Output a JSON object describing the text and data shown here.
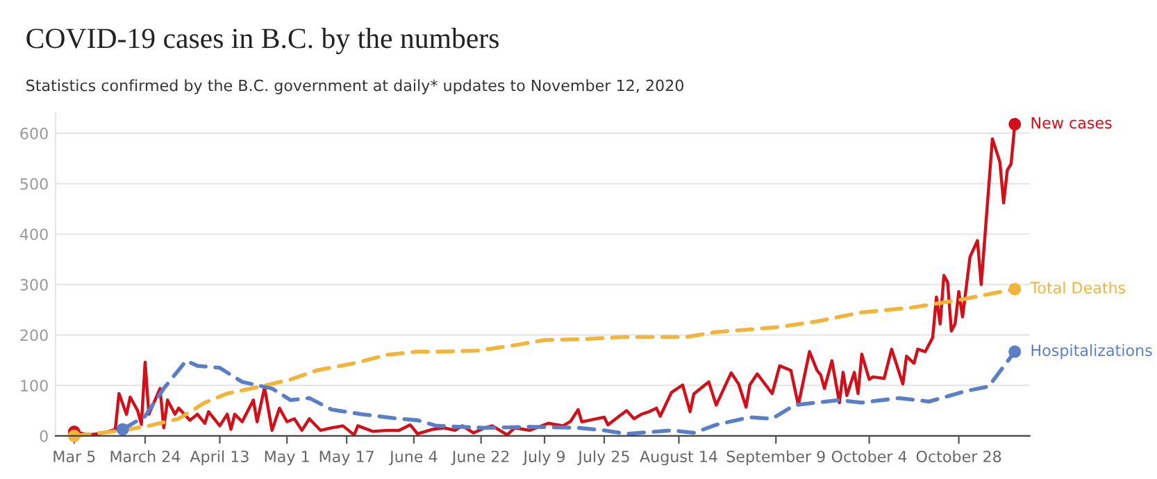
{
  "chart_data": {
    "type": "line",
    "title": "COVID-19 cases in B.C. by the numbers",
    "subtitle": "Statistics confirmed by the B.C. government at daily* updates to November 12, 2020",
    "series": [
      {
        "name": "New cases",
        "color": "#d0101b",
        "line_style": "solid",
        "x": [
          "2020-03-05",
          "2020-03-09",
          "2020-03-13",
          "2020-03-16",
          "2020-03-17",
          "2020-03-19",
          "2020-03-20",
          "2020-03-22",
          "2020-03-23",
          "2020-03-24",
          "2020-03-25",
          "2020-03-28",
          "2020-03-29",
          "2020-03-30",
          "2020-04-01",
          "2020-04-02",
          "2020-04-05",
          "2020-04-07",
          "2020-04-09",
          "2020-04-10",
          "2020-04-13",
          "2020-04-15",
          "2020-04-16",
          "2020-04-17",
          "2020-04-19",
          "2020-04-22",
          "2020-04-23",
          "2020-04-25",
          "2020-04-27",
          "2020-04-29",
          "2020-05-01",
          "2020-05-03",
          "2020-05-05",
          "2020-05-07",
          "2020-05-10",
          "2020-05-13",
          "2020-05-16",
          "2020-05-19",
          "2020-05-20",
          "2020-05-24",
          "2020-05-28",
          "2020-05-31",
          "2020-06-03",
          "2020-06-05",
          "2020-06-09",
          "2020-06-12",
          "2020-06-15",
          "2020-06-17",
          "2020-06-20",
          "2020-06-23",
          "2020-06-25",
          "2020-06-29",
          "2020-07-01",
          "2020-07-05",
          "2020-07-10",
          "2020-07-14",
          "2020-07-16",
          "2020-07-18",
          "2020-07-19",
          "2020-07-23",
          "2020-07-25",
          "2020-07-26",
          "2020-07-29",
          "2020-07-31",
          "2020-08-02",
          "2020-08-04",
          "2020-08-06",
          "2020-08-08",
          "2020-08-09",
          "2020-08-12",
          "2020-08-15",
          "2020-08-17",
          "2020-08-18",
          "2020-08-22",
          "2020-08-24",
          "2020-08-28",
          "2020-08-30",
          "2020-09-01",
          "2020-09-02",
          "2020-09-04",
          "2020-09-08",
          "2020-09-10",
          "2020-09-13",
          "2020-09-15",
          "2020-09-18",
          "2020-09-20",
          "2020-09-21",
          "2020-09-22",
          "2020-09-24",
          "2020-09-26",
          "2020-09-27",
          "2020-09-28",
          "2020-09-30",
          "2020-10-01",
          "2020-10-02",
          "2020-10-04",
          "2020-10-05",
          "2020-10-08",
          "2020-10-10",
          "2020-10-13",
          "2020-10-14",
          "2020-10-16",
          "2020-10-17",
          "2020-10-19",
          "2020-10-21",
          "2020-10-22",
          "2020-10-23",
          "2020-10-24",
          "2020-10-25",
          "2020-10-26",
          "2020-10-27",
          "2020-10-28",
          "2020-10-29",
          "2020-10-31",
          "2020-11-02",
          "2020-11-03",
          "2020-11-06",
          "2020-11-08",
          "2020-11-09",
          "2020-11-10",
          "2020-11-11",
          "2020-11-12"
        ],
        "values": [
          8,
          2,
          6,
          13,
          84,
          43,
          77,
          50,
          23,
          146,
          43,
          94,
          16,
          71,
          43,
          55,
          31,
          43,
          25,
          48,
          20,
          43,
          13,
          43,
          28,
          71,
          28,
          96,
          11,
          55,
          28,
          34,
          11,
          34,
          11,
          16,
          20,
          2,
          20,
          9,
          11,
          11,
          22,
          4,
          13,
          16,
          11,
          20,
          6,
          16,
          20,
          2,
          16,
          11,
          25,
          20,
          29,
          52,
          28,
          34,
          37,
          22,
          39,
          50,
          34,
          43,
          48,
          55,
          39,
          86,
          101,
          48,
          83,
          107,
          61,
          125,
          103,
          57,
          101,
          123,
          84,
          139,
          130,
          61,
          167,
          130,
          121,
          94,
          149,
          66,
          126,
          80,
          126,
          84,
          162,
          112,
          117,
          114,
          172,
          103,
          158,
          144,
          172,
          167,
          195,
          275,
          222,
          318,
          305,
          208,
          222,
          286,
          236,
          355,
          387,
          300,
          589,
          543,
          462,
          527,
          539,
          618
        ]
      },
      {
        "name": "Total Deaths",
        "color": "#f2b53a",
        "line_style": "dashed",
        "x": [
          "2020-03-05",
          "2020-03-18",
          "2020-03-25",
          "2020-04-02",
          "2020-04-09",
          "2020-04-15",
          "2020-04-24",
          "2020-05-02",
          "2020-05-09",
          "2020-05-19",
          "2020-05-28",
          "2020-06-05",
          "2020-06-10",
          "2020-06-21",
          "2020-07-02",
          "2020-07-09",
          "2020-07-20",
          "2020-07-30",
          "2020-08-16",
          "2020-08-24",
          "2020-09-02",
          "2020-09-10",
          "2020-09-20",
          "2020-10-02",
          "2020-10-15",
          "2020-10-27",
          "2020-11-12"
        ],
        "values": [
          0,
          11,
          20,
          34,
          66,
          84,
          98,
          112,
          130,
          144,
          161,
          167,
          167,
          169,
          181,
          190,
          192,
          196,
          196,
          206,
          211,
          216,
          227,
          245,
          254,
          268,
          291
        ]
      },
      {
        "name": "Hospitalizations",
        "color": "#5b7fc7",
        "line_style": "dashed",
        "x": [
          "2020-03-18",
          "2020-03-24",
          "2020-03-29",
          "2020-04-04",
          "2020-04-07",
          "2020-04-13",
          "2020-04-19",
          "2020-04-27",
          "2020-05-02",
          "2020-05-07",
          "2020-05-13",
          "2020-05-21",
          "2020-05-31",
          "2020-06-05",
          "2020-06-10",
          "2020-06-23",
          "2020-07-05",
          "2020-07-18",
          "2020-07-25",
          "2020-07-31",
          "2020-08-12",
          "2020-08-18",
          "2020-08-24",
          "2020-09-02",
          "2020-09-08",
          "2020-09-14",
          "2020-09-26",
          "2020-10-02",
          "2020-10-12",
          "2020-10-20",
          "2020-10-30",
          "2020-11-05",
          "2020-11-12"
        ],
        "values": [
          13,
          39,
          94,
          149,
          139,
          135,
          107,
          94,
          71,
          75,
          52,
          43,
          34,
          31,
          20,
          16,
          18,
          16,
          11,
          4,
          11,
          6,
          22,
          37,
          34,
          61,
          71,
          66,
          75,
          68,
          89,
          98,
          167
        ]
      }
    ],
    "xlim": [
      "2020-02-29",
      "2020-11-16"
    ],
    "xticks": [
      {
        "value": "2020-03-05",
        "label": "Mar 5"
      },
      {
        "value": "2020-03-24",
        "label": "March 24"
      },
      {
        "value": "2020-04-13",
        "label": "April 13"
      },
      {
        "value": "2020-05-01",
        "label": "May 1"
      },
      {
        "value": "2020-05-17",
        "label": "May 17"
      },
      {
        "value": "2020-06-04",
        "label": "June 4"
      },
      {
        "value": "2020-06-22",
        "label": "June 22"
      },
      {
        "value": "2020-07-09",
        "label": "July 9"
      },
      {
        "value": "2020-07-25",
        "label": "July 25"
      },
      {
        "value": "2020-08-14",
        "label": "August 14"
      },
      {
        "value": "2020-09-09",
        "label": "September 9"
      },
      {
        "value": "2020-10-04",
        "label": "October 4"
      },
      {
        "value": "2020-10-28",
        "label": "October 28"
      }
    ],
    "ylim": [
      0,
      640
    ],
    "yticks": [
      0,
      100,
      200,
      300,
      400,
      500,
      600
    ],
    "grid": "y",
    "legend": false
  }
}
